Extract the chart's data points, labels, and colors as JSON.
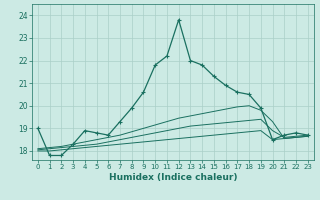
{
  "xlabel": "Humidex (Indice chaleur)",
  "background_color": "#cceae4",
  "grid_color": "#aacfc8",
  "line_color": "#1a7060",
  "xlim": [
    -0.5,
    23.5
  ],
  "ylim": [
    17.6,
    24.5
  ],
  "yticks": [
    18,
    19,
    20,
    21,
    22,
    23,
    24
  ],
  "xticks": [
    0,
    1,
    2,
    3,
    4,
    5,
    6,
    7,
    8,
    9,
    10,
    11,
    12,
    13,
    14,
    15,
    16,
    17,
    18,
    19,
    20,
    21,
    22,
    23
  ],
  "series": [
    [
      19.0,
      17.8,
      17.8,
      18.3,
      18.9,
      18.8,
      18.7,
      19.3,
      19.9,
      20.6,
      21.8,
      22.2,
      23.8,
      22.0,
      21.8,
      21.3,
      20.9,
      20.6,
      20.5,
      19.9,
      18.5,
      18.7,
      18.8,
      18.7
    ],
    [
      18.0,
      18.0,
      18.05,
      18.1,
      18.15,
      18.2,
      18.25,
      18.3,
      18.35,
      18.4,
      18.45,
      18.5,
      18.55,
      18.6,
      18.65,
      18.7,
      18.75,
      18.8,
      18.85,
      18.9,
      18.5,
      18.55,
      18.6,
      18.65
    ],
    [
      18.05,
      18.1,
      18.15,
      18.2,
      18.25,
      18.3,
      18.4,
      18.5,
      18.6,
      18.7,
      18.8,
      18.9,
      19.0,
      19.1,
      19.15,
      19.2,
      19.25,
      19.3,
      19.35,
      19.4,
      18.9,
      18.6,
      18.65,
      18.7
    ],
    [
      18.1,
      18.15,
      18.2,
      18.3,
      18.4,
      18.5,
      18.6,
      18.7,
      18.85,
      19.0,
      19.15,
      19.3,
      19.45,
      19.55,
      19.65,
      19.75,
      19.85,
      19.95,
      20.0,
      19.8,
      19.3,
      18.55,
      18.6,
      18.65
    ]
  ]
}
